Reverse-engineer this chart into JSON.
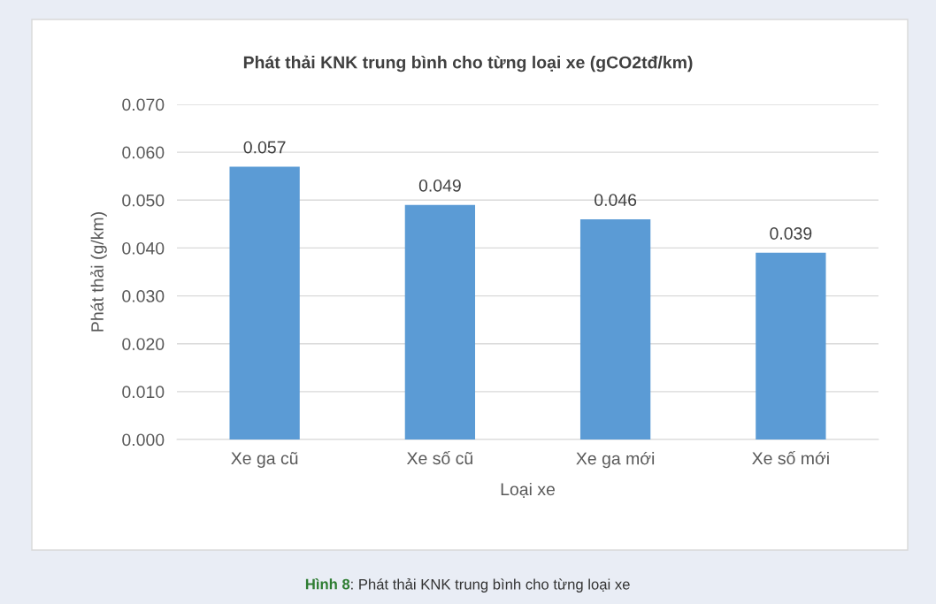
{
  "chart_data": {
    "type": "bar",
    "title": "Phát thải KNK trung bình cho từng loại xe (gCO2tđ/km)",
    "xlabel": "Loại xe",
    "ylabel": "Phát thải (g/km)",
    "categories": [
      "Xe ga cũ",
      "Xe số cũ",
      "Xe ga mới",
      "Xe số mới"
    ],
    "values": [
      0.057,
      0.049,
      0.046,
      0.039
    ],
    "color": "#5b9bd5",
    "ylim": [
      0,
      0.07
    ],
    "yticks": [
      {
        "value": 0,
        "label": "0.000"
      },
      {
        "value": 0.01,
        "label": "0.010"
      },
      {
        "value": 0.02,
        "label": "0.020"
      },
      {
        "value": 0.03,
        "label": "0.030"
      },
      {
        "value": 0.04,
        "label": "0.040"
      },
      {
        "value": 0.05,
        "label": "0.050"
      },
      {
        "value": 0.06,
        "label": "0.060"
      },
      {
        "value": 0.07,
        "label": "0.070"
      }
    ],
    "grid": "y",
    "data_labels": true,
    "annotations": [
      "Hình 8",
      ": Phát thải KNK trung bình cho từng loại xe"
    ]
  }
}
